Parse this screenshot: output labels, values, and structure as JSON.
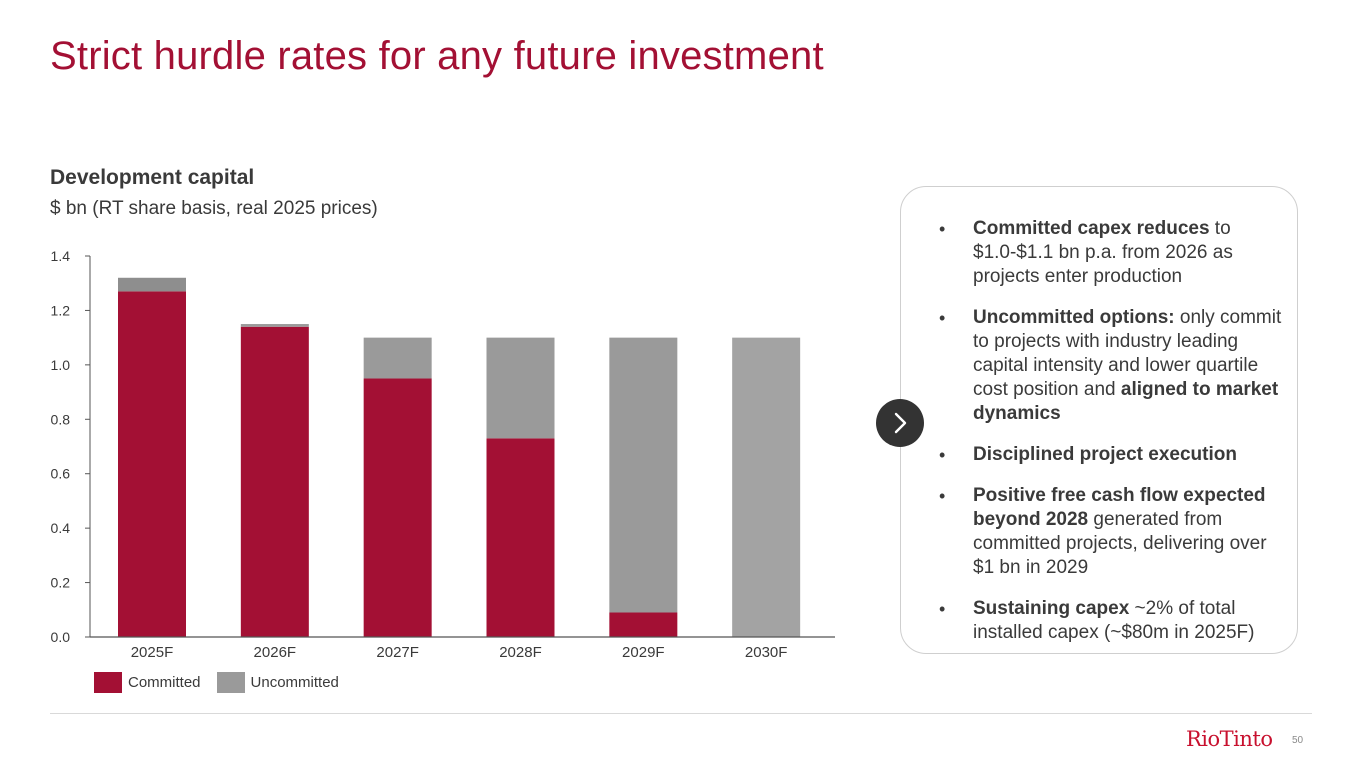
{
  "slide": {
    "title": "Strict hurdle rates for any future investment",
    "page_number": "50",
    "logo_text": "RioTinto"
  },
  "colors": {
    "committed": "#a31034",
    "uncommitted_2025": "#8e8e8e",
    "uncommitted": "#9a9a9a",
    "uncommitted_2030": "#a3a3a3",
    "title": "#a31034",
    "axis": "#555555",
    "text": "#3a3a3a"
  },
  "chart_data": {
    "type": "bar",
    "stacked": true,
    "title": "Development capital",
    "subtitle": "$ bn (RT share basis, real 2025 prices)",
    "xlabel": "",
    "ylabel": "",
    "categories": [
      "2025F",
      "2026F",
      "2027F",
      "2028F",
      "2029F",
      "2030F"
    ],
    "series": [
      {
        "name": "Committed",
        "values": [
          1.27,
          1.14,
          0.95,
          0.73,
          0.09,
          0.0
        ]
      },
      {
        "name": "Uncommitted",
        "values": [
          0.05,
          0.01,
          0.15,
          0.37,
          1.01,
          1.1
        ]
      }
    ],
    "ylim": [
      0,
      1.4
    ],
    "yticks": [
      "0.0",
      "0.2",
      "0.4",
      "0.6",
      "0.8",
      "1.0",
      "1.2",
      "1.4"
    ],
    "legend": [
      "Committed",
      "Uncommitted"
    ],
    "legend_position": "bottom-left"
  },
  "callout": {
    "bullets": [
      {
        "bold": "Committed capex reduces",
        "text": " to $1.0-$1.1 bn p.a. from 2026 as projects enter production",
        "bold2": ""
      },
      {
        "bold": "Uncommitted options:",
        "text": " only commit to projects with industry leading capital intensity and lower quartile cost position and ",
        "bold2": "aligned to market dynamics"
      },
      {
        "bold": "Disciplined project execution",
        "text": "",
        "bold2": ""
      },
      {
        "bold": "Positive free cash flow expected beyond 2028",
        "text": " generated from committed projects, delivering over $1 bn in 2029",
        "bold2": ""
      },
      {
        "bold": "Sustaining capex",
        "text": " ~2% of total installed capex (~$80m in 2025F)",
        "bold2": ""
      }
    ],
    "arrow_icon": "chevron-right-icon"
  }
}
